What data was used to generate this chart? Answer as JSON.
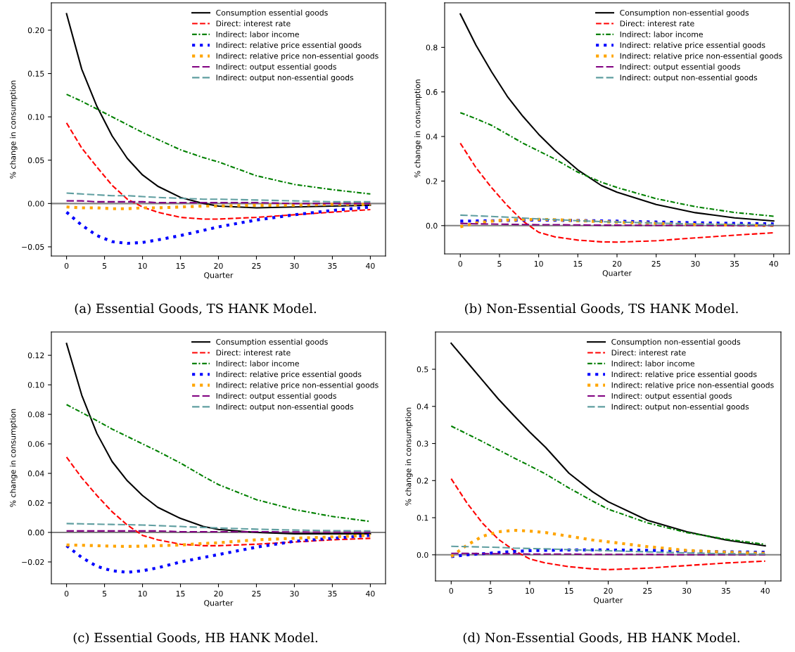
{
  "chart_data": [
    {
      "type": "line",
      "xlabel": "Quarter",
      "ylabel": "% change in consumption",
      "annotations": [
        "(a) Essential Goods, TS HANK Model."
      ],
      "x": [
        0,
        2,
        4,
        6,
        8,
        10,
        12,
        15,
        18,
        20,
        25,
        30,
        35,
        40
      ],
      "xlim": [
        -2,
        42
      ],
      "xticks": [
        0,
        5,
        10,
        15,
        20,
        25,
        30,
        35,
        40
      ],
      "ylim": [
        -0.0606,
        0.2316
      ],
      "yticks": [
        {
          "value": -0.05,
          "label": "−0.05"
        },
        {
          "value": 0.0,
          "label": "0.00"
        },
        {
          "value": 0.05,
          "label": "0.05"
        },
        {
          "value": 0.1,
          "label": "0.10"
        },
        {
          "value": 0.15,
          "label": "0.15"
        },
        {
          "value": 0.2,
          "label": "0.20"
        }
      ],
      "grid": false,
      "legend": "top right",
      "marker": "none",
      "ref_lines": [
        {
          "axis": "y",
          "value": 0,
          "color": "#808080"
        }
      ],
      "series": [
        {
          "name": "Consumption essential goods",
          "color": "#000000",
          "line_style": "solid",
          "values": [
            0.219,
            0.155,
            0.112,
            0.078,
            0.052,
            0.033,
            0.02,
            0.007,
            0.0,
            -0.003,
            -0.005,
            -0.004,
            -0.003,
            -0.002
          ]
        },
        {
          "name": "Direct: interest rate",
          "color": "#ff0000",
          "line_style": "dashed",
          "values": [
            0.093,
            0.064,
            0.042,
            0.021,
            0.005,
            -0.004,
            -0.01,
            -0.016,
            -0.018,
            -0.018,
            -0.016,
            -0.013,
            -0.01,
            -0.007
          ]
        },
        {
          "name": "Indirect: labor income",
          "color": "#008000",
          "line_style": "dashdot",
          "values": [
            0.126,
            0.118,
            0.109,
            0.1,
            0.091,
            0.082,
            0.074,
            0.062,
            0.053,
            0.048,
            0.032,
            0.022,
            0.016,
            0.011
          ]
        },
        {
          "name": "Indirect: relative price essential goods",
          "color": "#0000ff",
          "line_style": "dotted",
          "values": [
            -0.01,
            -0.025,
            -0.037,
            -0.044,
            -0.046,
            -0.045,
            -0.042,
            -0.037,
            -0.031,
            -0.027,
            -0.019,
            -0.013,
            -0.008,
            -0.004
          ]
        },
        {
          "name": "Indirect: relative price non-essential goods",
          "color": "#ffa500",
          "line_style": "dotted",
          "values": [
            -0.004,
            -0.005,
            -0.005,
            -0.006,
            -0.006,
            -0.005,
            -0.005,
            -0.004,
            -0.003,
            -0.003,
            -0.002,
            -0.002,
            -0.001,
            -0.001
          ]
        },
        {
          "name": "Indirect: output essential goods",
          "color": "#800080",
          "line_style": "longdash",
          "values": [
            0.003,
            0.003,
            0.002,
            0.002,
            0.002,
            0.002,
            0.001,
            0.001,
            0.001,
            0.001,
            0.001,
            0.0,
            0.0,
            0.0
          ]
        },
        {
          "name": "Indirect: output non-essential goods",
          "color": "#5f9ea0",
          "line_style": "longdash",
          "values": [
            0.012,
            0.011,
            0.01,
            0.009,
            0.009,
            0.008,
            0.007,
            0.006,
            0.005,
            0.005,
            0.004,
            0.003,
            0.002,
            0.002
          ]
        }
      ]
    },
    {
      "type": "line",
      "xlabel": "Quarter",
      "ylabel": "% change in consumption",
      "annotations": [
        "(b) Non-Essential Goods, TS HANK Model."
      ],
      "x": [
        0,
        2,
        4,
        6,
        8,
        10,
        12,
        15,
        18,
        20,
        25,
        30,
        35,
        40
      ],
      "xlim": [
        -2,
        42
      ],
      "xticks": [
        0,
        5,
        10,
        15,
        20,
        25,
        30,
        35,
        40
      ],
      "ylim": [
        -0.127,
        1.0
      ],
      "yticks": [
        {
          "value": 0.0,
          "label": "0.0"
        },
        {
          "value": 0.2,
          "label": "0.2"
        },
        {
          "value": 0.4,
          "label": "0.4"
        },
        {
          "value": 0.6,
          "label": "0.6"
        },
        {
          "value": 0.8,
          "label": "0.8"
        }
      ],
      "grid": false,
      "legend": "top right",
      "marker": "none",
      "ref_lines": [
        {
          "axis": "y",
          "value": 0,
          "color": "#808080"
        }
      ],
      "series": [
        {
          "name": "Consumption non-essential goods",
          "color": "#000000",
          "line_style": "solid",
          "values": [
            0.95,
            0.81,
            0.69,
            0.58,
            0.49,
            0.41,
            0.34,
            0.25,
            0.18,
            0.15,
            0.095,
            0.058,
            0.035,
            0.021
          ]
        },
        {
          "name": "Direct: interest rate",
          "color": "#ff0000",
          "line_style": "dashed",
          "values": [
            0.37,
            0.26,
            0.17,
            0.09,
            0.02,
            -0.03,
            -0.05,
            -0.065,
            -0.073,
            -0.074,
            -0.068,
            -0.055,
            -0.043,
            -0.032
          ]
        },
        {
          "name": "Indirect: labor income",
          "color": "#008000",
          "line_style": "dashdot",
          "values": [
            0.507,
            0.48,
            0.45,
            0.41,
            0.37,
            0.335,
            0.3,
            0.24,
            0.195,
            0.171,
            0.121,
            0.085,
            0.059,
            0.042
          ]
        },
        {
          "name": "Indirect: relative price essential goods",
          "color": "#0000ff",
          "line_style": "dotted",
          "values": [
            0.02,
            0.021,
            0.022,
            0.023,
            0.024,
            0.025,
            0.024,
            0.023,
            0.021,
            0.02,
            0.016,
            0.013,
            0.01,
            0.008
          ]
        },
        {
          "name": "Indirect: relative price non-essential goods",
          "color": "#ffa500",
          "line_style": "dotted",
          "values": [
            -0.005,
            0.012,
            0.02,
            0.025,
            0.027,
            0.028,
            0.027,
            0.022,
            0.018,
            0.015,
            0.01,
            0.005,
            0.002,
            0.0
          ]
        },
        {
          "name": "Indirect: output essential goods",
          "color": "#800080",
          "line_style": "longdash",
          "values": [
            0.01,
            0.008,
            0.007,
            0.006,
            0.005,
            0.004,
            0.004,
            0.003,
            0.002,
            0.002,
            0.001,
            0.001,
            0.0,
            0.0
          ]
        },
        {
          "name": "Indirect: output non-essential goods",
          "color": "#5f9ea0",
          "line_style": "longdash",
          "values": [
            0.047,
            0.044,
            0.041,
            0.038,
            0.034,
            0.03,
            0.027,
            0.022,
            0.018,
            0.016,
            0.011,
            0.007,
            0.005,
            0.003
          ]
        }
      ]
    },
    {
      "type": "line",
      "xlabel": "Quarter",
      "ylabel": "% change in consumption",
      "annotations": [
        "(c) Essential Goods, HB HANK Model."
      ],
      "x": [
        0,
        2,
        4,
        6,
        8,
        10,
        12,
        15,
        18,
        20,
        25,
        30,
        35,
        40
      ],
      "xlim": [
        -2,
        42
      ],
      "xticks": [
        0,
        5,
        10,
        15,
        20,
        25,
        30,
        35,
        40
      ],
      "ylim": [
        -0.0348,
        0.1358
      ],
      "yticks": [
        {
          "value": -0.02,
          "label": "−0.02"
        },
        {
          "value": 0.0,
          "label": "0.00"
        },
        {
          "value": 0.02,
          "label": "0.02"
        },
        {
          "value": 0.04,
          "label": "0.04"
        },
        {
          "value": 0.06,
          "label": "0.06"
        },
        {
          "value": 0.08,
          "label": "0.08"
        },
        {
          "value": 0.1,
          "label": "0.10"
        },
        {
          "value": 0.12,
          "label": "0.12"
        }
      ],
      "grid": false,
      "legend": "top right",
      "marker": "none",
      "ref_lines": [
        {
          "axis": "y",
          "value": 0,
          "color": "#808080"
        }
      ],
      "series": [
        {
          "name": "Consumption essential goods",
          "color": "#000000",
          "line_style": "solid",
          "values": [
            0.128,
            0.093,
            0.067,
            0.048,
            0.035,
            0.025,
            0.017,
            0.0095,
            0.004,
            0.002,
            0.0,
            -0.001,
            -0.001,
            -0.001
          ]
        },
        {
          "name": "Direct: interest rate",
          "color": "#ff0000",
          "line_style": "dashed",
          "values": [
            0.051,
            0.037,
            0.025,
            0.014,
            0.005,
            -0.002,
            -0.005,
            -0.008,
            -0.009,
            -0.009,
            -0.008,
            -0.0065,
            -0.005,
            -0.004
          ]
        },
        {
          "name": "Indirect: labor income",
          "color": "#008000",
          "line_style": "dashdot",
          "values": [
            0.0866,
            0.0812,
            0.0757,
            0.07,
            0.065,
            0.06,
            0.055,
            0.047,
            0.038,
            0.0324,
            0.0222,
            0.0155,
            0.0108,
            0.0074
          ]
        },
        {
          "name": "Indirect: relative price essential goods",
          "color": "#0000ff",
          "line_style": "dotted",
          "values": [
            -0.009,
            -0.017,
            -0.023,
            -0.026,
            -0.027,
            -0.026,
            -0.024,
            -0.02,
            -0.017,
            -0.015,
            -0.01,
            -0.006,
            -0.004,
            -0.002
          ]
        },
        {
          "name": "Indirect: relative price non-essential goods",
          "color": "#ffa500",
          "line_style": "dotted",
          "values": [
            -0.0085,
            -0.0087,
            -0.009,
            -0.0093,
            -0.0095,
            -0.0093,
            -0.009,
            -0.0085,
            -0.0075,
            -0.007,
            -0.005,
            -0.004,
            -0.003,
            -0.002
          ]
        },
        {
          "name": "Indirect: output essential goods",
          "color": "#800080",
          "line_style": "longdash",
          "values": [
            0.001,
            0.001,
            0.001,
            0.001,
            0.001,
            0.001,
            0.001,
            0.0005,
            0.0005,
            0.0005,
            0.0005,
            0.0003,
            0.0002,
            0.0001
          ]
        },
        {
          "name": "Indirect: output non-essential goods",
          "color": "#5f9ea0",
          "line_style": "longdash",
          "values": [
            0.006,
            0.0058,
            0.0056,
            0.0054,
            0.0052,
            0.005,
            0.0046,
            0.004,
            0.0034,
            0.003,
            0.0022,
            0.0016,
            0.0012,
            0.001
          ]
        }
      ]
    },
    {
      "type": "line",
      "xlabel": "Quarter",
      "ylabel": "% change in consumption",
      "annotations": [
        "(d) Non-Essential Goods, HB HANK Model."
      ],
      "x": [
        0,
        2,
        4,
        6,
        8,
        10,
        12,
        15,
        18,
        20,
        25,
        30,
        35,
        40
      ],
      "xlim": [
        -2,
        42
      ],
      "xticks": [
        0,
        5,
        10,
        15,
        20,
        25,
        30,
        35,
        40
      ],
      "ylim": [
        -0.0705,
        0.6005
      ],
      "yticks": [
        {
          "value": 0.0,
          "label": "0.0"
        },
        {
          "value": 0.1,
          "label": "0.1"
        },
        {
          "value": 0.2,
          "label": "0.2"
        },
        {
          "value": 0.3,
          "label": "0.3"
        },
        {
          "value": 0.4,
          "label": "0.4"
        },
        {
          "value": 0.5,
          "label": "0.5"
        }
      ],
      "grid": false,
      "legend": "top right",
      "marker": "none",
      "ref_lines": [
        {
          "axis": "y",
          "value": 0,
          "color": "#808080"
        }
      ],
      "series": [
        {
          "name": "Consumption non-essential goods",
          "color": "#000000",
          "line_style": "solid",
          "values": [
            0.57,
            0.52,
            0.47,
            0.42,
            0.375,
            0.331,
            0.29,
            0.22,
            0.17,
            0.143,
            0.093,
            0.062,
            0.04,
            0.024
          ]
        },
        {
          "name": "Direct: interest rate",
          "color": "#ff0000",
          "line_style": "dashed",
          "values": [
            0.205,
            0.14,
            0.085,
            0.042,
            0.012,
            -0.011,
            -0.022,
            -0.032,
            -0.038,
            -0.04,
            -0.036,
            -0.029,
            -0.022,
            -0.017
          ]
        },
        {
          "name": "Indirect: labor income",
          "color": "#008000",
          "line_style": "dashdot",
          "values": [
            0.347,
            0.326,
            0.305,
            0.283,
            0.261,
            0.24,
            0.218,
            0.18,
            0.145,
            0.123,
            0.086,
            0.06,
            0.042,
            0.028
          ]
        },
        {
          "name": "Indirect: relative price essential goods",
          "color": "#0000ff",
          "line_style": "dotted",
          "values": [
            -0.005,
            0.0,
            0.003,
            0.006,
            0.009,
            0.011,
            0.012,
            0.013,
            0.013,
            0.013,
            0.012,
            0.01,
            0.008,
            0.007
          ]
        },
        {
          "name": "Indirect: relative price non-essential goods",
          "color": "#ffa500",
          "line_style": "dotted",
          "values": [
            -0.005,
            0.026,
            0.05,
            0.062,
            0.066,
            0.064,
            0.06,
            0.05,
            0.04,
            0.035,
            0.022,
            0.012,
            0.007,
            0.004
          ]
        },
        {
          "name": "Indirect: output essential goods",
          "color": "#800080",
          "line_style": "longdash",
          "values": [
            0.004,
            0.004,
            0.003,
            0.003,
            0.003,
            0.002,
            0.002,
            0.002,
            0.001,
            0.001,
            0.001,
            0.0,
            0.0,
            0.0
          ]
        },
        {
          "name": "Indirect: output non-essential goods",
          "color": "#5f9ea0",
          "line_style": "longdash",
          "values": [
            0.023,
            0.022,
            0.021,
            0.02,
            0.018,
            0.017,
            0.016,
            0.014,
            0.012,
            0.011,
            0.008,
            0.005,
            0.003,
            0.002
          ]
        }
      ]
    }
  ]
}
